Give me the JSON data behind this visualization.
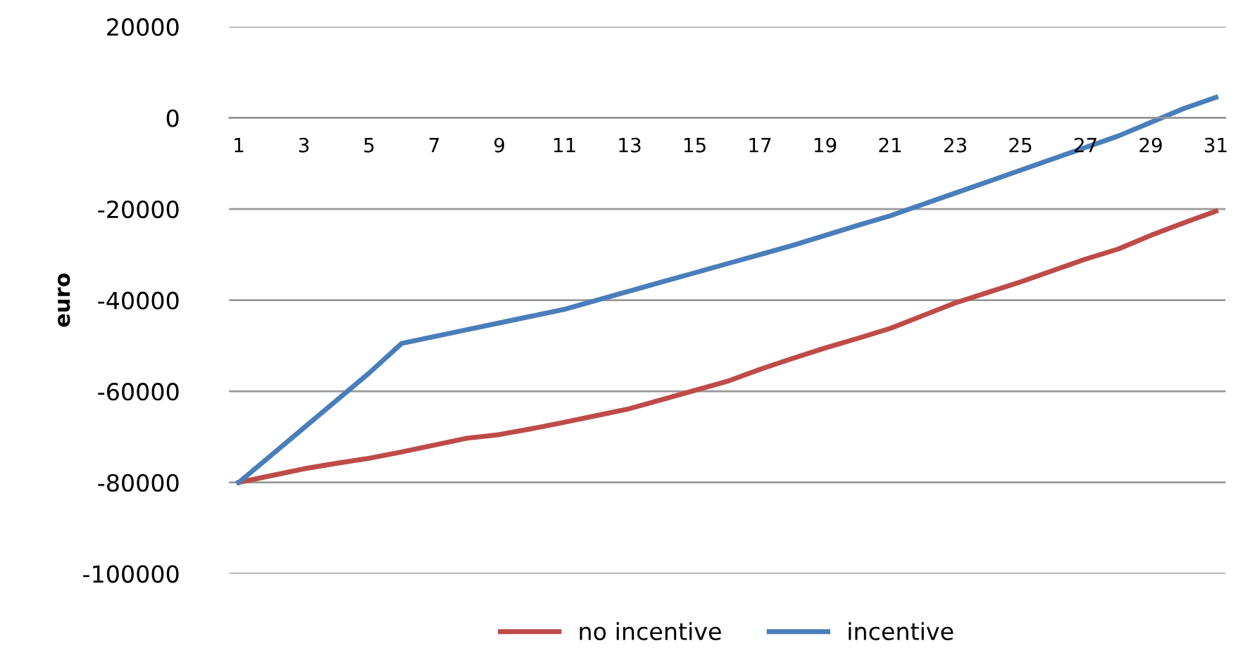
{
  "chart_data": {
    "type": "line",
    "ylabel": "euro",
    "categories": [
      "1",
      null,
      "3",
      null,
      "5",
      null,
      "7",
      null,
      "9",
      null,
      "11",
      null,
      "13",
      null,
      "15",
      null,
      "17",
      null,
      "19",
      null,
      "21",
      null,
      "23",
      null,
      "25",
      null,
      "27",
      null,
      "29",
      null,
      "31"
    ],
    "series": [
      {
        "name": "no incentive",
        "color": "#be4b48",
        "values": [
          -80000,
          -78500,
          -77000,
          -75800,
          -74700,
          -73300,
          -71800,
          -70300,
          -69500,
          -68200,
          -66800,
          -65300,
          -63800,
          -61800,
          -59800,
          -57800,
          -55200,
          -52800,
          -50500,
          -48400,
          -46200,
          -43400,
          -40600,
          -38300,
          -36000,
          -33500,
          -31000,
          -28800,
          -25800,
          -23100,
          -20500
        ]
      },
      {
        "name": "incentive",
        "color": "#4a7ebb",
        "values": [
          -80000,
          -74000,
          -68000,
          -62000,
          -56000,
          -49500,
          -48000,
          -46500,
          -45000,
          -43500,
          -42000,
          -40000,
          -38000,
          -36000,
          -34000,
          -32000,
          -30000,
          -28000,
          -25800,
          -23600,
          -21500,
          -19000,
          -16500,
          -14000,
          -11500,
          -9000,
          -6500,
          -4000,
          -1000,
          2000,
          4500
        ]
      }
    ],
    "ylim": [
      -100000,
      20000
    ],
    "yticks": [
      -100000,
      -80000,
      -60000,
      -40000,
      -20000,
      0,
      20000
    ],
    "grid": "y",
    "legend": "bottom",
    "marker": "none",
    "line_style": "solid"
  }
}
